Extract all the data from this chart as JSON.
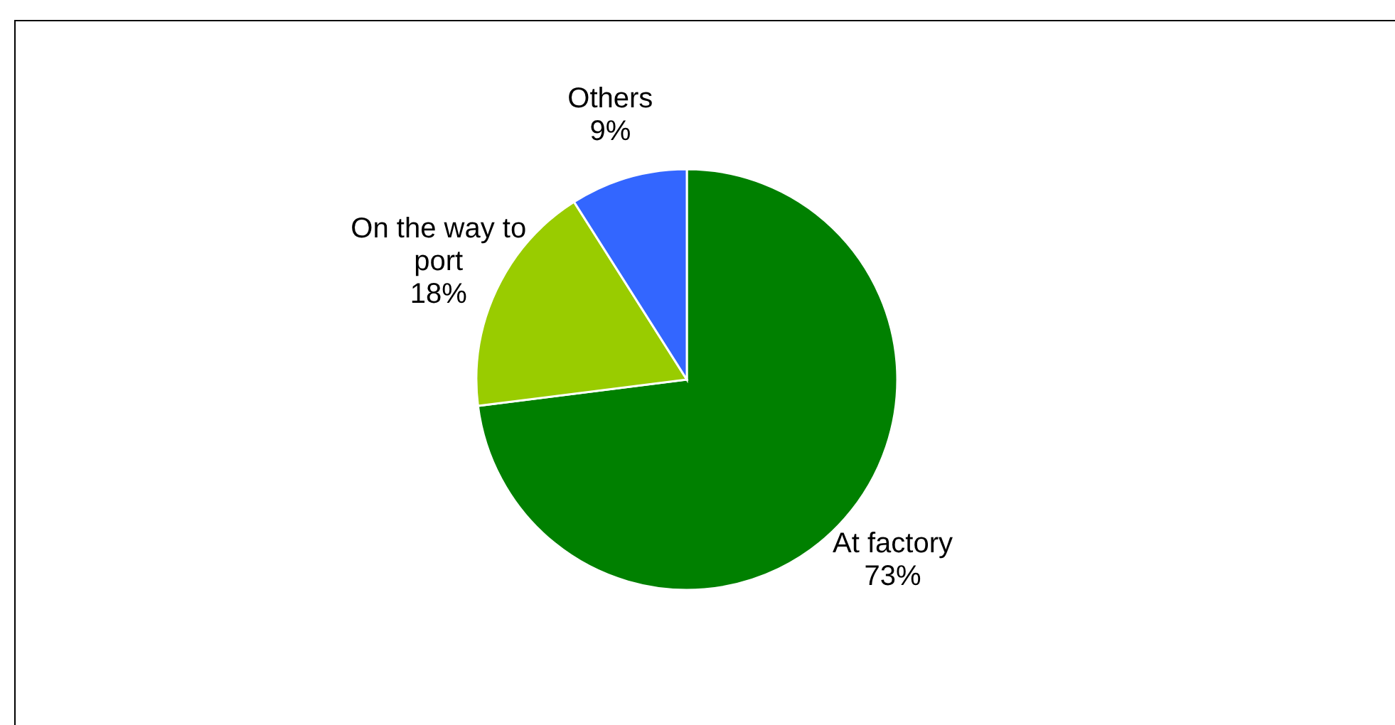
{
  "chart_data": {
    "type": "pie",
    "categories": [
      "At factory",
      "On the way to port",
      "Others"
    ],
    "values": [
      73,
      18,
      9
    ],
    "value_labels": [
      "73%",
      "18%",
      "9%"
    ],
    "colors": [
      "#008000",
      "#99cc00",
      "#3366ff"
    ]
  }
}
